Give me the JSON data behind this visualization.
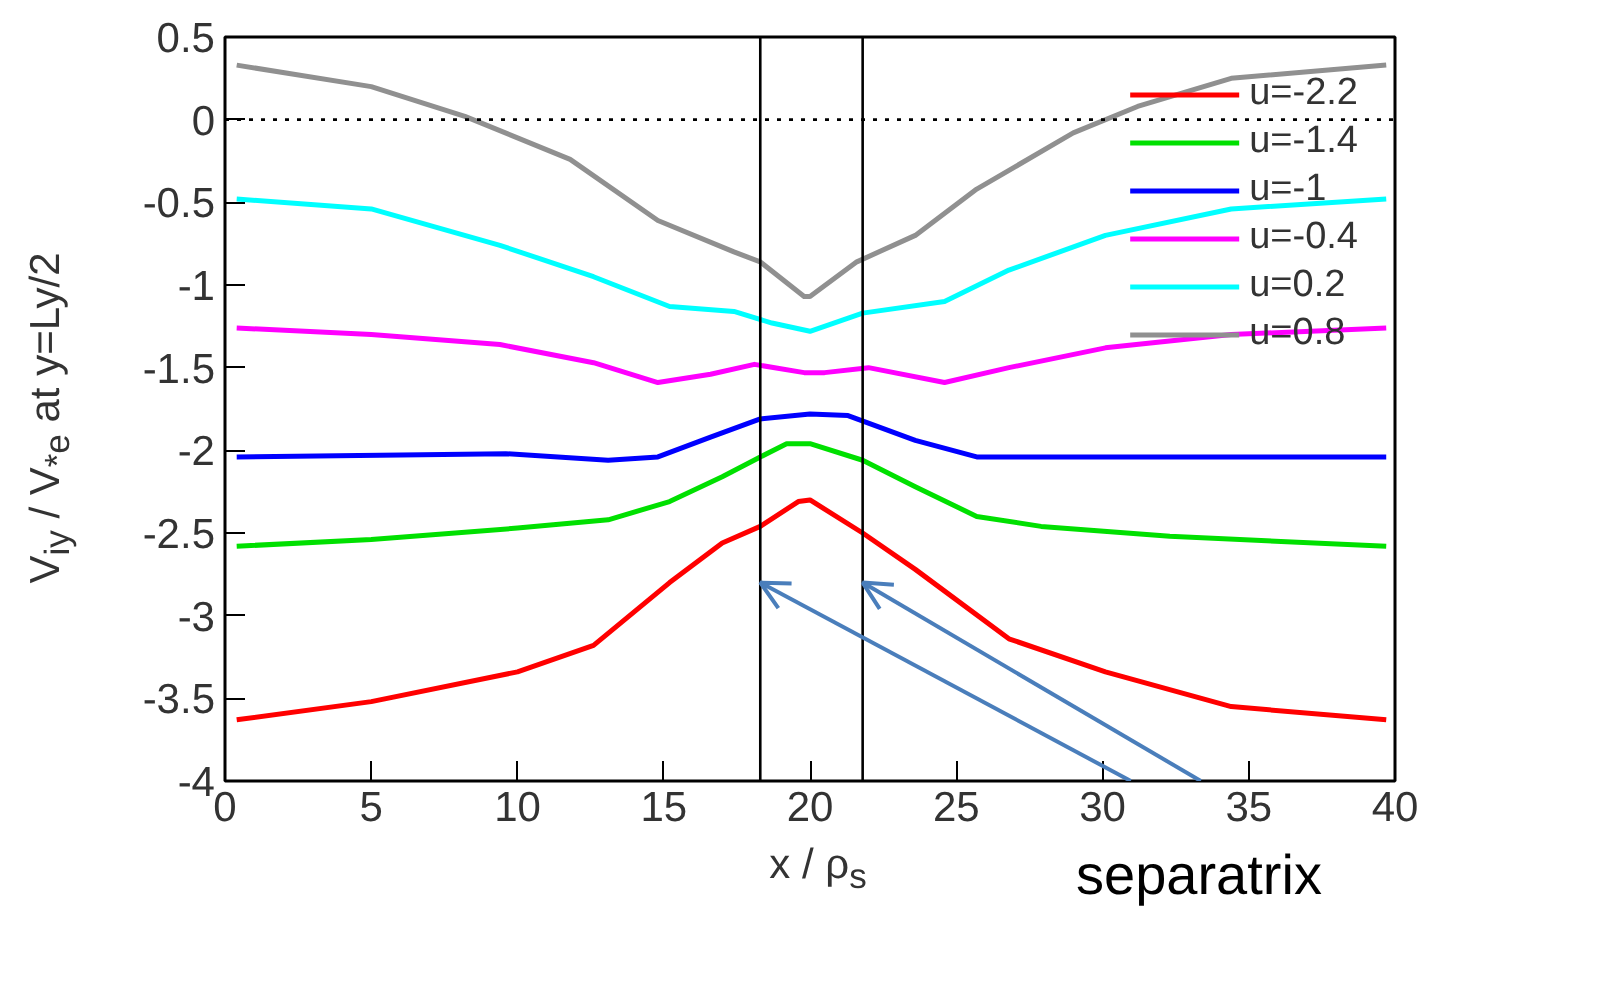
{
  "chart_data": {
    "type": "line",
    "xlabel": "x / ρ$_{s}$",
    "ylabel": "V$_{iy}$ / V$_{*e}$ at y=Ly/2",
    "xlim": [
      0,
      40
    ],
    "ylim": [
      -4,
      0.5
    ],
    "xticks": [
      0,
      5,
      10,
      15,
      20,
      25,
      30,
      35,
      40
    ],
    "yticks": [
      -4,
      -3.5,
      -3,
      -2.5,
      -2,
      -1.5,
      -1,
      -0.5,
      0,
      0.5
    ],
    "grid": false,
    "legend": "top right",
    "line_style": "solid",
    "marker": "none",
    "series": [
      {
        "name": "u=-2.2",
        "color": "#ff0000",
        "x": [
          0.4,
          5,
          10,
          12.6,
          15.2,
          17,
          18.3,
          19.6,
          20,
          21.8,
          23.6,
          26.8,
          30.1,
          34.4,
          39.7
        ],
        "values": [
          -3.63,
          -3.52,
          -3.34,
          -3.18,
          -2.8,
          -2.56,
          -2.46,
          -2.31,
          -2.3,
          -2.5,
          -2.72,
          -3.14,
          -3.34,
          -3.55,
          -3.63
        ]
      },
      {
        "name": "u=-1.4",
        "color": "#00e000",
        "x": [
          0.4,
          5,
          10,
          13.1,
          15.2,
          17,
          18.3,
          19.2,
          20,
          21.8,
          23.6,
          25.7,
          27.9,
          32.3,
          39.7
        ],
        "values": [
          -2.58,
          -2.54,
          -2.47,
          -2.42,
          -2.31,
          -2.16,
          -2.04,
          -1.96,
          -1.96,
          -2.06,
          -2.22,
          -2.4,
          -2.46,
          -2.52,
          -2.58
        ]
      },
      {
        "name": "u=-1",
        "color": "#0000ff",
        "x": [
          0.4,
          9.6,
          13.1,
          14.8,
          16.6,
          18.3,
          20,
          21.3,
          23.6,
          25.7,
          32,
          39.7
        ],
        "values": [
          -2.04,
          -2.02,
          -2.06,
          -2.04,
          -1.92,
          -1.81,
          -1.78,
          -1.79,
          -1.94,
          -2.04,
          -2.04,
          -2.04
        ]
      },
      {
        "name": "u=-0.4",
        "color": "#ff00ff",
        "x": [
          0.4,
          5,
          9.4,
          12.6,
          14.8,
          16.6,
          18.1,
          19.8,
          20.5,
          22,
          24.6,
          26.8,
          30.1,
          34.4,
          39.7
        ],
        "values": [
          -1.26,
          -1.3,
          -1.36,
          -1.47,
          -1.59,
          -1.54,
          -1.48,
          -1.53,
          -1.53,
          -1.5,
          -1.59,
          -1.5,
          -1.38,
          -1.3,
          -1.26
        ]
      },
      {
        "name": "u=0.2",
        "color": "#00ffff",
        "x": [
          0.4,
          5,
          9.4,
          12.6,
          15.2,
          17.4,
          18.7,
          20,
          21.8,
          24.6,
          26.8,
          30.1,
          34.4,
          39.7
        ],
        "values": [
          -0.48,
          -0.54,
          -0.76,
          -0.95,
          -1.13,
          -1.16,
          -1.23,
          -1.28,
          -1.17,
          -1.1,
          -0.91,
          -0.7,
          -0.54,
          -0.48
        ]
      },
      {
        "name": "u=0.8",
        "color": "#909090",
        "x": [
          0.4,
          5,
          8.2,
          11.8,
          14.8,
          17.4,
          18.3,
          19.8,
          20,
          21.6,
          23.6,
          25.7,
          29,
          31.2,
          34.4,
          39.7
        ],
        "values": [
          0.33,
          0.2,
          0.02,
          -0.24,
          -0.61,
          -0.8,
          -0.86,
          -1.07,
          -1.07,
          -0.86,
          -0.7,
          -0.42,
          -0.08,
          0.08,
          0.25,
          0.33
        ]
      }
    ],
    "ref_lines": [
      {
        "axis": "y",
        "value": 0,
        "color": "#000000",
        "line_style": "dotted"
      },
      {
        "axis": "x",
        "value": 18.3,
        "color": "#000000",
        "line_style": "solid"
      },
      {
        "axis": "x",
        "value": 21.8,
        "color": "#000000",
        "line_style": "solid"
      }
    ],
    "annotations": [
      {
        "text": "separatrix",
        "x": 18.3,
        "y": -2.8
      }
    ]
  }
}
